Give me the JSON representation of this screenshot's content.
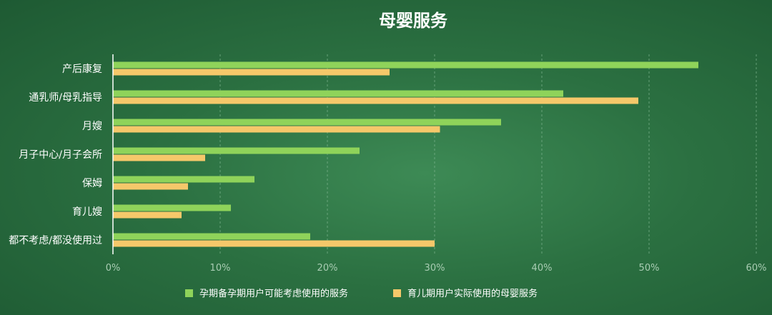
{
  "chart_data": {
    "type": "bar",
    "orientation": "horizontal",
    "title": "母婴服务",
    "categories": [
      "产后康复",
      "通乳师/母乳指导",
      "月嫂",
      "月子中心/月子会所",
      "保姆",
      "育儿嫂",
      "都不考虑/都没使用过"
    ],
    "series": [
      {
        "name": "孕期备孕期用户可能考虑使用的服务",
        "color": "#8fd35a",
        "values": [
          54.6,
          42.0,
          36.2,
          23.0,
          13.2,
          11.0,
          18.4
        ]
      },
      {
        "name": "育儿期用户实际使用的母婴服务",
        "color": "#f5c86a",
        "values": [
          25.8,
          49.0,
          30.5,
          8.6,
          7.0,
          6.4,
          30.0
        ]
      }
    ],
    "xlim": [
      0,
      60
    ],
    "x_ticks": [
      "0%",
      "10%",
      "20%",
      "30%",
      "40%",
      "50%",
      "60%"
    ],
    "grid": true,
    "legend_position": "bottom"
  }
}
